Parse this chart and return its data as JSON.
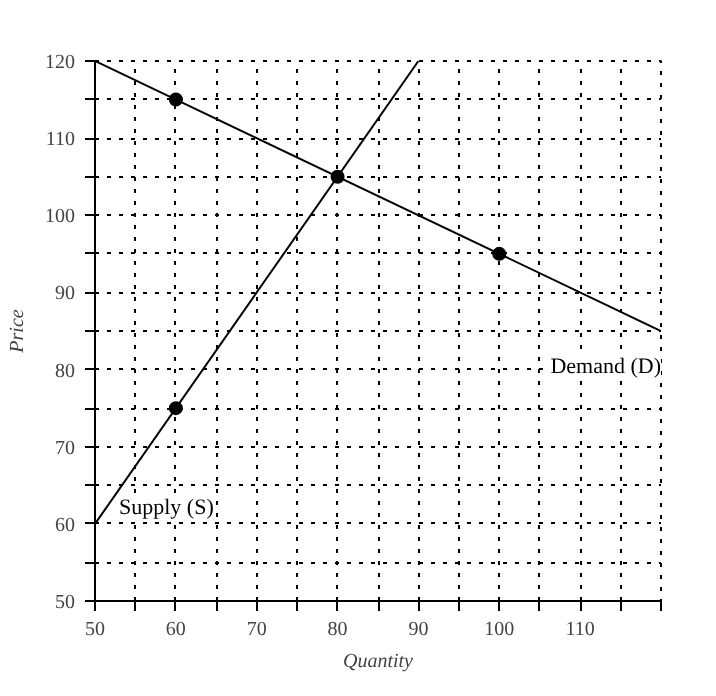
{
  "chart_data": {
    "type": "line",
    "xlabel": "Quantity",
    "ylabel": "Price",
    "xlim": [
      50,
      120
    ],
    "ylim": [
      50,
      120
    ],
    "xticks": [
      50,
      {
        "value": 55,
        "label": null
      },
      60,
      {
        "value": 65,
        "label": null
      },
      70,
      {
        "value": 75,
        "label": null
      },
      80,
      {
        "value": 85,
        "label": null
      },
      90,
      {
        "value": 95,
        "label": null
      },
      100,
      {
        "value": 105,
        "label": null
      },
      110,
      {
        "value": 115,
        "label": null
      },
      {
        "value": 120,
        "label": null
      }
    ],
    "yticks": [
      50,
      {
        "value": 55,
        "label": null
      },
      60,
      {
        "value": 65,
        "label": null
      },
      70,
      {
        "value": 75,
        "label": null
      },
      80,
      {
        "value": 85,
        "label": null
      },
      90,
      {
        "value": 95,
        "label": null
      },
      100,
      {
        "value": 105,
        "label": null
      },
      110,
      {
        "value": 115,
        "label": null
      },
      120
    ],
    "grid": true,
    "series": [
      {
        "name": "Demand (D)",
        "color": "#000000",
        "x": [
          50,
          120
        ],
        "values": [
          120,
          85
        ]
      },
      {
        "name": "Supply (S)",
        "color": "#000000",
        "x": [
          50,
          90
        ],
        "values": [
          60,
          120
        ]
      },
      {
        "type": "scatter",
        "color": "#000000",
        "x": [
          60,
          80,
          100,
          60
        ],
        "values": [
          115,
          105,
          95,
          75
        ],
        "marker": "circle"
      }
    ]
  }
}
